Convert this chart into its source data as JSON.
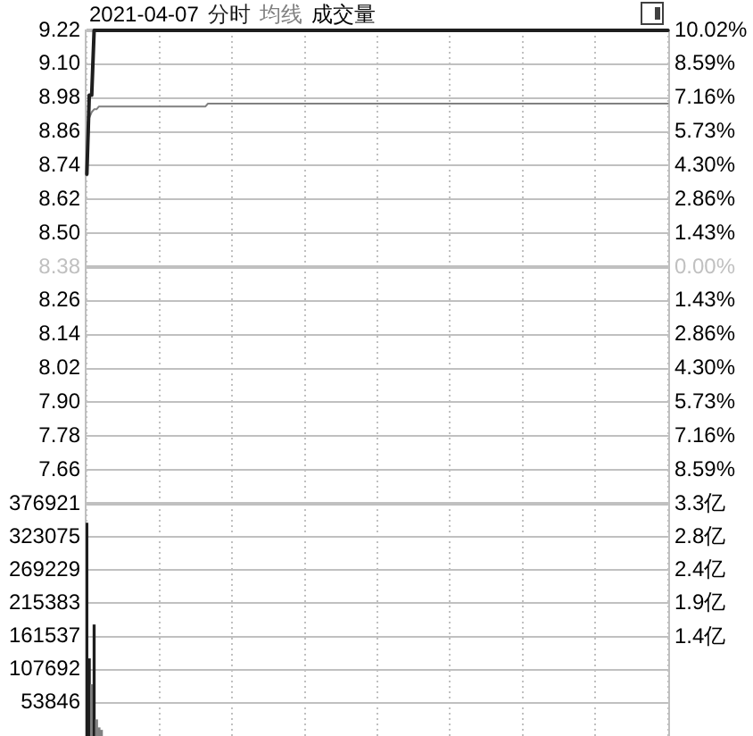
{
  "chart_data": [
    {
      "type": "line",
      "title": "2021-04-07",
      "legend": "top left",
      "grid": true,
      "annotations": [
        "成交量"
      ],
      "categories": [
        null,
        null,
        null,
        null,
        null,
        null,
        null,
        null,
        null,
        null,
        null,
        null,
        null,
        null,
        null,
        null,
        null,
        null,
        null,
        null,
        null,
        null,
        null,
        null,
        null,
        null,
        null,
        null,
        null,
        null,
        null,
        null,
        null,
        null,
        null,
        null,
        null,
        null,
        null,
        null,
        null,
        null,
        null,
        null,
        null,
        null,
        null,
        null,
        null,
        null,
        null,
        null,
        null,
        null,
        null,
        null,
        null,
        null,
        null,
        null,
        null,
        null,
        null,
        null,
        null,
        null,
        null,
        null,
        null,
        null,
        null,
        null,
        null,
        null,
        null,
        null,
        null,
        null,
        null,
        null,
        null,
        null,
        null,
        null,
        null,
        null,
        null,
        null,
        null,
        null,
        null,
        null,
        null,
        null,
        null,
        null,
        null,
        null,
        null,
        null,
        null,
        null,
        null,
        null,
        null,
        null,
        null,
        null,
        null,
        null,
        null,
        null,
        null,
        null,
        null,
        null,
        null,
        null,
        null,
        null,
        null,
        null,
        null,
        null,
        null,
        null,
        null,
        null,
        null,
        null,
        null,
        null,
        null,
        null,
        null,
        null,
        null,
        null,
        null,
        null,
        null,
        null,
        null,
        null,
        null,
        null,
        null,
        null,
        null,
        null,
        null,
        null,
        null,
        null,
        null,
        null,
        null,
        null,
        null,
        null,
        null,
        null,
        null,
        null,
        null,
        null,
        null,
        null,
        null,
        null,
        null,
        null,
        null,
        null,
        null,
        null,
        null,
        null,
        null,
        null,
        null,
        null,
        null,
        null,
        null,
        null,
        null,
        null,
        null,
        null,
        null,
        null,
        null,
        null,
        null,
        null,
        null,
        null,
        null,
        null,
        null,
        null,
        null,
        null,
        null,
        null,
        null,
        null,
        null,
        null,
        null,
        null,
        null,
        null,
        null,
        null,
        null,
        null,
        null,
        null,
        null,
        null,
        null,
        null,
        null,
        null,
        null,
        null,
        null,
        null,
        null,
        null,
        null,
        null,
        null,
        null,
        null,
        null,
        null,
        null,
        null
      ],
      "series": [
        {
          "name": "分时",
          "color": "#1e1e1e",
          "values": [
            8.71,
            8.99,
            8.99,
            9.22,
            9.22,
            9.22,
            9.22,
            9.22,
            9.22,
            9.22,
            9.22,
            9.22,
            9.22,
            9.22,
            9.22,
            9.22,
            9.22,
            9.22,
            9.22,
            9.22,
            9.22,
            9.22,
            9.22,
            9.22,
            9.22,
            9.22,
            9.22,
            9.22,
            9.22,
            9.22,
            9.22,
            9.22,
            9.22,
            9.22,
            9.22,
            9.22,
            9.22,
            9.22,
            9.22,
            9.22,
            9.22,
            9.22,
            9.22,
            9.22,
            9.22,
            9.22,
            9.22,
            9.22,
            9.22,
            9.22,
            9.22,
            9.22,
            9.22,
            9.22,
            9.22,
            9.22,
            9.22,
            9.22,
            9.22,
            9.22,
            9.22,
            9.22,
            9.22,
            9.22,
            9.22,
            9.22,
            9.22,
            9.22,
            9.22,
            9.22,
            9.22,
            9.22,
            9.22,
            9.22,
            9.22,
            9.22,
            9.22,
            9.22,
            9.22,
            9.22,
            9.22,
            9.22,
            9.22,
            9.22,
            9.22,
            9.22,
            9.22,
            9.22,
            9.22,
            9.22,
            9.22,
            9.22,
            9.22,
            9.22,
            9.22,
            9.22,
            9.22,
            9.22,
            9.22,
            9.22,
            9.22,
            9.22,
            9.22,
            9.22,
            9.22,
            9.22,
            9.22,
            9.22,
            9.22,
            9.22,
            9.22,
            9.22,
            9.22,
            9.22,
            9.22,
            9.22,
            9.22,
            9.22,
            9.22,
            9.22,
            9.22,
            9.22,
            9.22,
            9.22,
            9.22,
            9.22,
            9.22,
            9.22,
            9.22,
            9.22,
            9.22,
            9.22,
            9.22,
            9.22,
            9.22,
            9.22,
            9.22,
            9.22,
            9.22,
            9.22,
            9.22,
            9.22,
            9.22,
            9.22,
            9.22,
            9.22,
            9.22,
            9.22,
            9.22,
            9.22,
            9.22,
            9.22,
            9.22,
            9.22,
            9.22,
            9.22,
            9.22,
            9.22,
            9.22,
            9.22,
            9.22,
            9.22,
            9.22,
            9.22,
            9.22,
            9.22,
            9.22,
            9.22,
            9.22,
            9.22,
            9.22,
            9.22,
            9.22,
            9.22,
            9.22,
            9.22,
            9.22,
            9.22,
            9.22,
            9.22,
            9.22,
            9.22,
            9.22,
            9.22,
            9.22,
            9.22,
            9.22,
            9.22,
            9.22,
            9.22,
            9.22,
            9.22,
            9.22,
            9.22,
            9.22,
            9.22,
            9.22,
            9.22,
            9.22,
            9.22,
            9.22,
            9.22,
            9.22,
            9.22,
            9.22,
            9.22,
            9.22,
            9.22,
            9.22,
            9.22,
            9.22,
            9.22,
            9.22,
            9.22,
            9.22,
            9.22,
            9.22,
            9.22,
            9.22,
            9.22,
            9.22,
            9.22,
            9.22,
            9.22,
            9.22,
            9.22,
            9.22,
            9.22,
            9.22,
            9.22,
            9.22,
            9.22,
            9.22,
            9.22,
            9.22,
            9.22,
            9.22,
            9.22,
            9.22,
            9.22,
            9.22
          ]
        },
        {
          "name": "均线",
          "color": "#808080",
          "values": [
            8.73,
            8.91,
            8.93,
            8.94,
            8.94,
            8.95,
            8.95,
            8.95,
            8.95,
            8.95,
            8.95,
            8.95,
            8.95,
            8.95,
            8.95,
            8.95,
            8.95,
            8.95,
            8.95,
            8.95,
            8.95,
            8.95,
            8.95,
            8.95,
            8.95,
            8.95,
            8.95,
            8.95,
            8.95,
            8.95,
            8.95,
            8.95,
            8.95,
            8.95,
            8.95,
            8.95,
            8.95,
            8.95,
            8.95,
            8.95,
            8.95,
            8.95,
            8.95,
            8.95,
            8.95,
            8.95,
            8.95,
            8.95,
            8.95,
            8.95,
            8.96,
            8.96,
            8.96,
            8.96,
            8.96,
            8.96,
            8.96,
            8.96,
            8.96,
            8.96,
            8.96,
            8.96,
            8.96,
            8.96,
            8.96,
            8.96,
            8.96,
            8.96,
            8.96,
            8.96,
            8.96,
            8.96,
            8.96,
            8.96,
            8.96,
            8.96,
            8.96,
            8.96,
            8.96,
            8.96,
            8.96,
            8.96,
            8.96,
            8.96,
            8.96,
            8.96,
            8.96,
            8.96,
            8.96,
            8.96,
            8.96,
            8.96,
            8.96,
            8.96,
            8.96,
            8.96,
            8.96,
            8.96,
            8.96,
            8.96,
            8.96,
            8.96,
            8.96,
            8.96,
            8.96,
            8.96,
            8.96,
            8.96,
            8.96,
            8.96,
            8.96,
            8.96,
            8.96,
            8.96,
            8.96,
            8.96,
            8.96,
            8.96,
            8.96,
            8.96,
            8.96,
            8.96,
            8.96,
            8.96,
            8.96,
            8.96,
            8.96,
            8.96,
            8.96,
            8.96,
            8.96,
            8.96,
            8.96,
            8.96,
            8.96,
            8.96,
            8.96,
            8.96,
            8.96,
            8.96,
            8.96,
            8.96,
            8.96,
            8.96,
            8.96,
            8.96,
            8.96,
            8.96,
            8.96,
            8.96,
            8.96,
            8.96,
            8.96,
            8.96,
            8.96,
            8.96,
            8.96,
            8.96,
            8.96,
            8.96,
            8.96,
            8.96,
            8.96,
            8.96,
            8.96,
            8.96,
            8.96,
            8.96,
            8.96,
            8.96,
            8.96,
            8.96,
            8.96,
            8.96,
            8.96,
            8.96,
            8.96,
            8.96,
            8.96,
            8.96,
            8.96,
            8.96,
            8.96,
            8.96,
            8.96,
            8.96,
            8.96,
            8.96,
            8.96,
            8.96,
            8.96,
            8.96,
            8.96,
            8.96,
            8.96,
            8.96,
            8.96,
            8.96,
            8.96,
            8.96,
            8.96,
            8.96,
            8.96,
            8.96,
            8.96,
            8.96,
            8.96,
            8.96,
            8.96,
            8.96,
            8.96,
            8.96,
            8.96,
            8.96,
            8.96,
            8.96,
            8.96,
            8.96,
            8.96,
            8.96,
            8.96,
            8.96,
            8.96,
            8.96,
            8.96,
            8.96,
            8.96,
            8.96,
            8.96,
            8.96,
            8.96,
            8.96,
            8.96,
            8.96,
            8.96,
            8.96,
            8.96,
            8.96,
            8.96,
            8.96,
            8.96
          ]
        }
      ],
      "ylim": [
        7.54,
        9.22
      ],
      "yticks": [
        9.22,
        {
          "value": 9.1,
          "label": "9.10"
        },
        8.98,
        8.86,
        8.74,
        8.62,
        {
          "value": 8.5,
          "label": "8.50"
        },
        8.38,
        8.26,
        8.14,
        8.02,
        {
          "value": 7.9,
          "label": "7.90"
        },
        7.78,
        7.66
      ],
      "y2lim": [
        -10.02,
        10.02
      ],
      "y2ticks": [
        {
          "value": 10.02,
          "label": "10.02%"
        },
        {
          "value": 8.59,
          "label": "8.59%"
        },
        {
          "value": 7.16,
          "label": "7.16%"
        },
        {
          "value": 5.73,
          "label": "5.73%"
        },
        {
          "value": 4.3,
          "label": "4.30%"
        },
        {
          "value": 2.86,
          "label": "2.86%"
        },
        {
          "value": 1.43,
          "label": "1.43%"
        },
        {
          "value": 0,
          "label": "0.00%"
        },
        {
          "value": -1.43,
          "label": "1.43%"
        },
        {
          "value": -2.86,
          "label": "2.86%"
        },
        {
          "value": -4.3,
          "label": "4.30%"
        },
        {
          "value": -5.73,
          "label": "5.73%"
        },
        {
          "value": -7.16,
          "label": "7.16%"
        },
        {
          "value": -8.59,
          "label": "8.59%"
        }
      ],
      "ref_lines": [
        {
          "axis": "y",
          "value": 8.38,
          "color": "#c0c0c0"
        }
      ]
    },
    {
      "type": "bar",
      "grid": true,
      "categories": [
        null,
        null,
        null,
        null,
        null,
        null,
        null,
        null,
        null,
        null,
        null,
        null,
        null,
        null,
        null,
        null,
        null,
        null,
        null,
        null,
        null,
        null,
        null,
        null,
        null,
        null,
        null,
        null,
        null,
        null,
        null,
        null,
        null,
        null,
        null,
        null,
        null,
        null,
        null,
        null,
        null,
        null,
        null,
        null,
        null,
        null,
        null,
        null,
        null,
        null,
        null,
        null,
        null,
        null,
        null,
        null,
        null,
        null,
        null,
        null,
        null,
        null,
        null,
        null,
        null,
        null,
        null,
        null,
        null,
        null,
        null,
        null,
        null,
        null,
        null,
        null,
        null,
        null,
        null,
        null,
        null,
        null,
        null,
        null,
        null,
        null,
        null,
        null,
        null,
        null,
        null,
        null,
        null,
        null,
        null,
        null,
        null,
        null,
        null,
        null,
        null,
        null,
        null,
        null,
        null,
        null,
        null,
        null,
        null,
        null,
        null,
        null,
        null,
        null,
        null,
        null,
        null,
        null,
        null,
        null,
        null,
        null,
        null,
        null,
        null,
        null,
        null,
        null,
        null,
        null,
        null,
        null,
        null,
        null,
        null,
        null,
        null,
        null,
        null,
        null,
        null,
        null,
        null,
        null,
        null,
        null,
        null,
        null,
        null,
        null,
        null,
        null,
        null,
        null,
        null,
        null,
        null,
        null,
        null,
        null,
        null,
        null,
        null,
        null,
        null,
        null,
        null,
        null,
        null,
        null,
        null,
        null,
        null,
        null,
        null,
        null,
        null,
        null,
        null,
        null,
        null,
        null,
        null,
        null,
        null,
        null,
        null,
        null,
        null,
        null,
        null,
        null,
        null,
        null,
        null,
        null,
        null,
        null,
        null,
        null,
        null,
        null,
        null,
        null,
        null,
        null,
        null,
        null,
        null,
        null,
        null,
        null,
        null,
        null,
        null,
        null,
        null,
        null,
        null,
        null,
        null,
        null,
        null,
        null,
        null,
        null,
        null,
        null,
        null,
        null,
        null,
        null,
        null,
        null,
        null,
        null,
        null,
        null,
        null,
        null,
        null
      ],
      "series": [
        {
          "values": [
            345000,
            125000,
            83000,
            180000,
            26000,
            13000,
            9000,
            null,
            null,
            null,
            null,
            null,
            null,
            null,
            null,
            null,
            null,
            null,
            null,
            null,
            null,
            null,
            null,
            null,
            null,
            null,
            null,
            null,
            null,
            null,
            null,
            null,
            null,
            null,
            null,
            null,
            null,
            null,
            null,
            null,
            null,
            null,
            null,
            null,
            null,
            null,
            null,
            null,
            null,
            null,
            null,
            null,
            null,
            null,
            null,
            null,
            null,
            null,
            null,
            null,
            null,
            null,
            null,
            null,
            null,
            null,
            null,
            null,
            null,
            null,
            null,
            null,
            null,
            null,
            null,
            null,
            null,
            null,
            null,
            null,
            null,
            null,
            null,
            null,
            null,
            null,
            null,
            null,
            null,
            null,
            null,
            null,
            null,
            null,
            null,
            null,
            null,
            null,
            null,
            null,
            null,
            null,
            null,
            null,
            null,
            null,
            null,
            null,
            null,
            null,
            null,
            null,
            null,
            null,
            null,
            null,
            null,
            null,
            null,
            null,
            null,
            null,
            null,
            null,
            null,
            null,
            null,
            null,
            null,
            null,
            null,
            null,
            null,
            null,
            null,
            null,
            null,
            null,
            null,
            null,
            null,
            null,
            null,
            null,
            null,
            null,
            null,
            null,
            null,
            null,
            null,
            null,
            null,
            null,
            null,
            null,
            null,
            null,
            null,
            null,
            null,
            null,
            null,
            null,
            null,
            null,
            null,
            null,
            null,
            null,
            null,
            null,
            null,
            null,
            null,
            null,
            null,
            null,
            null,
            null,
            null,
            null,
            null,
            null,
            null,
            null,
            null,
            null,
            null,
            null,
            null,
            null,
            null,
            null,
            null,
            null,
            null,
            null,
            null,
            null,
            null,
            null,
            null,
            null,
            null,
            null,
            null,
            null,
            null,
            null,
            null,
            null,
            null,
            null,
            null,
            null,
            null,
            null,
            null,
            null,
            null,
            null,
            null,
            null,
            null,
            null,
            null,
            null,
            null,
            null,
            null,
            null,
            null,
            null,
            null,
            null,
            null,
            null,
            null,
            null,
            null
          ],
          "colors": [
            "#1e1e1e",
            "#1e1e1e",
            "#808080",
            "#1e1e1e",
            "#808080",
            "#808080",
            "#808080",
            "#808080",
            "#808080",
            "#808080",
            "#808080",
            "#808080",
            "#808080",
            "#808080",
            "#808080",
            "#808080",
            "#808080",
            "#808080",
            "#808080",
            "#808080",
            "#808080",
            "#808080",
            "#808080",
            "#808080",
            "#808080",
            "#808080",
            "#808080",
            "#808080",
            "#808080",
            "#808080",
            "#808080",
            "#808080",
            "#808080",
            "#808080",
            "#808080",
            "#808080",
            "#808080",
            "#808080",
            "#808080",
            "#808080",
            "#808080",
            "#808080",
            "#808080",
            "#808080",
            "#808080",
            "#808080",
            "#808080",
            "#808080",
            "#808080",
            "#808080",
            "#808080",
            "#808080",
            "#808080",
            "#808080",
            "#808080",
            "#808080",
            "#808080",
            "#808080",
            "#808080",
            "#808080",
            "#808080",
            "#808080",
            "#808080",
            "#808080",
            "#808080",
            "#808080",
            "#808080",
            "#808080",
            "#808080",
            "#808080",
            "#808080",
            "#808080",
            "#808080",
            "#808080",
            "#808080",
            "#808080",
            "#808080",
            "#808080",
            "#808080",
            "#808080",
            "#808080",
            "#808080",
            "#808080",
            "#808080",
            "#808080",
            "#808080",
            "#808080",
            "#808080",
            "#808080",
            "#808080",
            "#808080",
            "#808080",
            "#808080",
            "#808080",
            "#808080",
            "#808080",
            "#808080",
            "#808080",
            "#808080",
            "#808080",
            "#808080",
            "#808080",
            "#808080",
            "#808080",
            "#808080",
            "#808080",
            "#808080",
            "#808080",
            "#808080",
            "#808080",
            "#808080",
            "#808080",
            "#808080",
            "#808080",
            "#808080",
            "#808080",
            "#808080",
            "#808080",
            "#808080",
            "#808080",
            "#808080",
            "#808080",
            "#808080",
            "#808080",
            "#808080",
            "#808080",
            "#808080",
            "#808080",
            "#808080",
            "#808080",
            "#808080",
            "#808080",
            "#808080",
            "#808080",
            "#808080",
            "#808080",
            "#808080",
            "#808080",
            "#808080",
            "#808080",
            "#808080",
            "#808080",
            "#808080",
            "#808080",
            "#808080",
            "#808080",
            "#808080",
            "#808080",
            "#808080",
            "#808080",
            "#808080",
            "#808080",
            "#808080",
            "#808080",
            "#808080",
            "#808080",
            "#808080",
            "#808080",
            "#808080",
            "#808080",
            "#808080",
            "#808080",
            "#808080",
            "#808080",
            "#808080",
            "#808080",
            "#808080",
            "#808080",
            "#808080",
            "#808080",
            "#808080",
            "#808080",
            "#808080",
            "#808080",
            "#808080",
            "#808080",
            "#808080",
            "#808080",
            "#808080",
            "#808080",
            "#808080",
            "#808080",
            "#808080",
            "#808080",
            "#808080",
            "#808080",
            "#808080",
            "#808080",
            "#808080",
            "#808080",
            "#808080",
            "#808080",
            "#808080",
            "#808080",
            "#808080",
            "#808080",
            "#808080",
            "#808080",
            "#808080",
            "#808080",
            "#808080",
            "#808080",
            "#808080",
            "#808080",
            "#808080",
            "#808080",
            "#808080",
            "#808080",
            "#808080",
            "#808080",
            "#808080",
            "#808080",
            "#808080",
            "#808080",
            "#808080",
            "#808080",
            "#808080",
            "#808080",
            "#808080",
            "#808080",
            "#808080",
            "#808080",
            "#808080",
            "#808080",
            "#808080",
            "#808080",
            "#808080",
            "#808080",
            "#808080",
            "#808080",
            "#808080",
            "#808080",
            "#808080",
            "#808080",
            "#808080",
            "#808080",
            "#808080",
            "#808080",
            "#808080",
            "#808080",
            "#808080"
          ]
        }
      ],
      "ylim": [
        0,
        376921
      ],
      "yticks": [
        376921,
        323075,
        269229,
        215383,
        161537,
        107692,
        53846
      ],
      "y2lim": [
        0,
        3.3
      ],
      "y2ticks": [
        {
          "value": 3.3,
          "label": "3.3亿"
        },
        {
          "value": 2.83,
          "label": "2.8亿"
        },
        {
          "value": 2.36,
          "label": "2.4亿"
        },
        {
          "value": 1.89,
          "label": "1.9亿"
        },
        {
          "value": 1.41,
          "label": "1.4亿"
        }
      ]
    }
  ]
}
